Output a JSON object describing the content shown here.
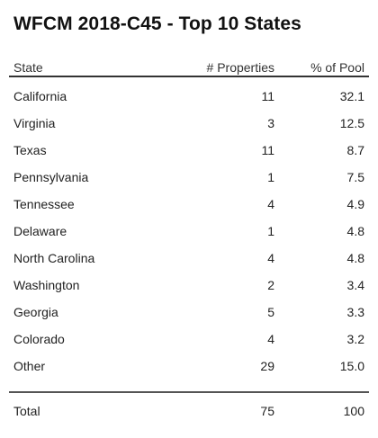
{
  "title": "WFCM 2018-C45 - Top 10 States",
  "columns": {
    "state": "State",
    "properties": "# Properties",
    "pool": "% of Pool"
  },
  "rows": [
    {
      "state": "California",
      "properties": "11",
      "pool": "32.1"
    },
    {
      "state": "Virginia",
      "properties": "3",
      "pool": "12.5"
    },
    {
      "state": "Texas",
      "properties": "11",
      "pool": "8.7"
    },
    {
      "state": "Pennsylvania",
      "properties": "1",
      "pool": "7.5"
    },
    {
      "state": "Tennessee",
      "properties": "4",
      "pool": "4.9"
    },
    {
      "state": "Delaware",
      "properties": "1",
      "pool": "4.8"
    },
    {
      "state": "North Carolina",
      "properties": "4",
      "pool": "4.8"
    },
    {
      "state": "Washington",
      "properties": "2",
      "pool": "3.4"
    },
    {
      "state": "Georgia",
      "properties": "5",
      "pool": "3.3"
    },
    {
      "state": "Colorado",
      "properties": "4",
      "pool": "3.2"
    },
    {
      "state": "Other",
      "properties": "29",
      "pool": "15.0"
    }
  ],
  "total": {
    "state": "Total",
    "properties": "75",
    "pool": "100"
  }
}
